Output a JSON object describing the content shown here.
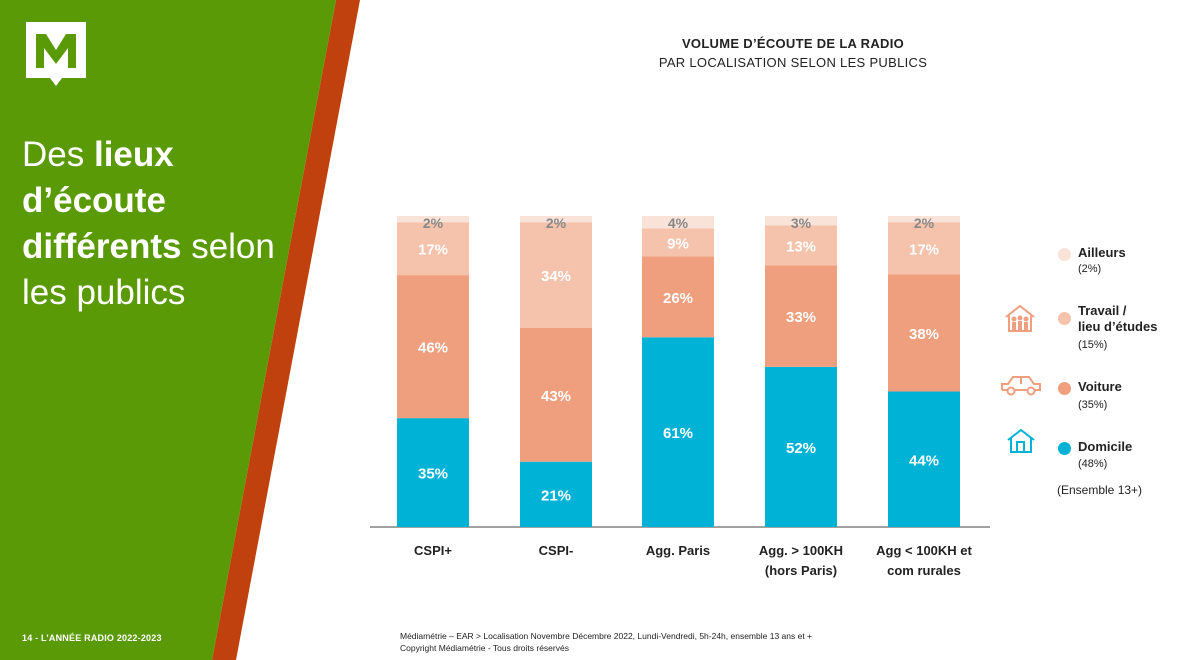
{
  "colors": {
    "green": "#5a9a07",
    "orange_band": "#c0410d",
    "domicile": "#00b2d6",
    "voiture": "#ef9f7d",
    "travail": "#f5c2ab",
    "ailleurs": "#f9e2d8",
    "icon_orange": "#ef9f7d",
    "icon_blue": "#00b2d6"
  },
  "brand": {
    "logo_letter": "M"
  },
  "headline": {
    "part1": "Des ",
    "bold1": "lieux d’écoute différents",
    "part2": " selon les publics"
  },
  "footer_left": "14 - L’ANNÉE RADIO 2022-2023",
  "chart_data": {
    "type": "bar",
    "stacked": true,
    "title": "VOLUME D’ÉCOUTE DE LA RADIO",
    "subtitle": "PAR LOCALISATION SELON LES PUBLICS",
    "categories": [
      [
        "CSPI+"
      ],
      [
        "CSPI-"
      ],
      [
        "Agg. Paris"
      ],
      [
        "Agg. > 100KH",
        "(hors Paris)"
      ],
      [
        "Agg < 100KH et",
        "com rurales"
      ]
    ],
    "series": [
      {
        "name": "Domicile",
        "values": [
          35,
          21,
          61,
          52,
          44
        ],
        "labels": [
          "35%",
          "21%",
          "61%",
          "52%",
          "44%"
        ]
      },
      {
        "name": "Voiture",
        "values": [
          46,
          43,
          26,
          33,
          38
        ],
        "labels": [
          "46%",
          "43%",
          "26%",
          "33%",
          "38%"
        ]
      },
      {
        "name": "Travail / lieu d’études",
        "values": [
          17,
          34,
          9,
          13,
          17
        ],
        "labels": [
          "17%",
          "34%",
          "9%",
          "13%",
          "17%"
        ]
      },
      {
        "name": "Ailleurs",
        "values": [
          2,
          2,
          4,
          3,
          2
        ],
        "labels": [
          "2%",
          "2%",
          "4%",
          "3%",
          "2%"
        ]
      }
    ],
    "ylim": [
      0,
      100
    ],
    "grid": false,
    "legend_position": "right"
  },
  "legend": [
    {
      "label": "Ailleurs",
      "pct": "(2%)",
      "icon": "none"
    },
    {
      "label": "Travail /\nlieu d’études",
      "pct": "(15%)",
      "icon": "people-building-icon"
    },
    {
      "label": "Voiture",
      "pct": "(35%)",
      "icon": "car-icon"
    },
    {
      "label": "Domicile",
      "pct": "(48%)",
      "icon": "house-icon"
    }
  ],
  "ensemble": "(Ensemble 13+)",
  "source": {
    "line1": "Médiamétrie – EAR > Localisation Novembre Décembre 2022, Lundi-Vendredi, 5h-24h, ensemble 13 ans et +",
    "line2": "Copyright Médiamétrie - Tous droits réservés"
  }
}
